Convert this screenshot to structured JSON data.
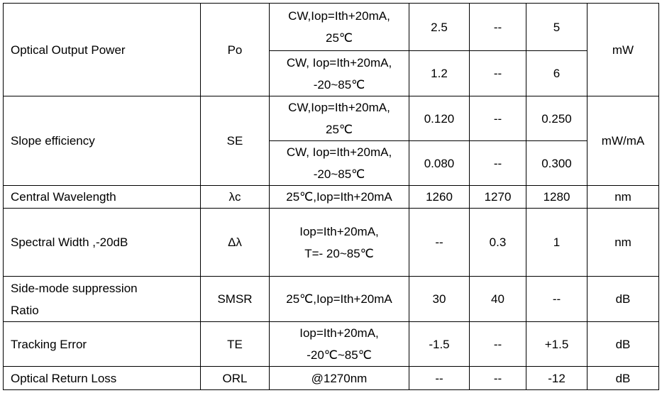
{
  "table": {
    "rows": [
      {
        "parameter": "Optical Output Power",
        "symbol": "Po",
        "unit": "mW",
        "conditions": [
          {
            "condition": "CW,Iop=Ith+20mA,\n25℃",
            "min": "2.5",
            "typ": "--",
            "max": "5"
          },
          {
            "condition": "CW, Iop=Ith+20mA,\n-20~85℃",
            "min": "1.2",
            "typ": "--",
            "max": "6"
          }
        ]
      },
      {
        "parameter": "Slope efficiency",
        "symbol": "SE",
        "unit": "mW/mA",
        "conditions": [
          {
            "condition": "CW,Iop=Ith+20mA,\n25℃",
            "min": "0.120",
            "typ": "--",
            "max": "0.250"
          },
          {
            "condition": "CW, Iop=Ith+20mA,\n-20~85℃",
            "min": "0.080",
            "typ": "--",
            "max": "0.300"
          }
        ]
      },
      {
        "parameter": "Central Wavelength",
        "symbol": "λc",
        "unit": "nm",
        "conditions": [
          {
            "condition": "25℃,Iop=Ith+20mA",
            "min": "1260",
            "typ": "1270",
            "max": "1280"
          }
        ]
      },
      {
        "parameter": "Spectral Width ,-20dB",
        "symbol": "Δλ",
        "unit": "nm",
        "conditions": [
          {
            "condition": "Iop=Ith+20mA,\nT=- 20~85℃",
            "min": "--",
            "typ": "0.3",
            "max": "1"
          }
        ]
      },
      {
        "parameter": "Side-mode suppression\nRatio",
        "symbol": "SMSR",
        "unit": "dB",
        "conditions": [
          {
            "condition": "25℃,Iop=Ith+20mA",
            "min": "30",
            "typ": "40",
            "max": "--"
          }
        ]
      },
      {
        "parameter": "Tracking Error",
        "symbol": "TE",
        "unit": "dB",
        "conditions": [
          {
            "condition": "Iop=Ith+20mA,\n-20℃~85℃",
            "min": "-1.5",
            "typ": "--",
            "max": "+1.5"
          }
        ]
      },
      {
        "parameter": "Optical Return Loss",
        "symbol": "ORL",
        "unit": "dB",
        "conditions": [
          {
            "condition": "@1270nm",
            "min": "--",
            "typ": "--",
            "max": "-12"
          }
        ]
      }
    ]
  }
}
